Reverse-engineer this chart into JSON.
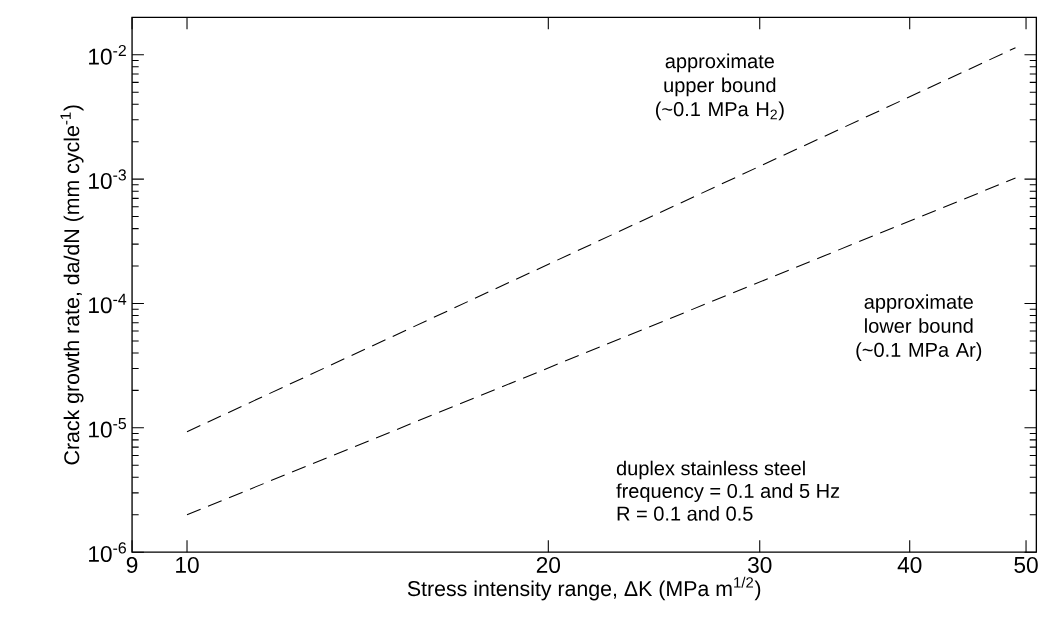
{
  "chart_data": {
    "type": "line",
    "xlabel": "Stress intensity range, ΔK (MPa m$^{1/2}$)",
    "ylabel": "Crack growth rate, da/dN (mm cycle$^{-1}$)",
    "log": "xy",
    "grid": false,
    "marker": "none",
    "line_style": "dashed",
    "xlim": [
      9,
      51
    ],
    "ylim": [
      1e-06,
      0.02
    ],
    "xticks": [
      9,
      10,
      20,
      30,
      40,
      50
    ],
    "yticks": [
      {
        "value": 1e-06,
        "label": "10$^{-6}$"
      },
      {
        "value": 1e-05,
        "label": "10$^{-5}$"
      },
      {
        "value": 0.0001,
        "label": "10$^{-4}$"
      },
      {
        "value": 0.001,
        "label": "10$^{-3}$"
      },
      {
        "value": 0.01,
        "label": "10$^{-2}$"
      }
    ],
    "x": [
      10,
      49
    ],
    "series": [
      {
        "color": "#000000",
        "values": [
          9.3e-06,
          0.0114
        ]
      },
      {
        "color": "#000000",
        "values": [
          2e-06,
          0.00102
        ]
      }
    ],
    "annotations": [
      "approximate upper bound (~0.1 MPa H$_{2}$)",
      "approximate lower bound (~0.1 MPa Ar)",
      "duplex stainless steel",
      "frequency = 0.1 and 5 Hz",
      "R = 0.1 and 0.5"
    ]
  }
}
